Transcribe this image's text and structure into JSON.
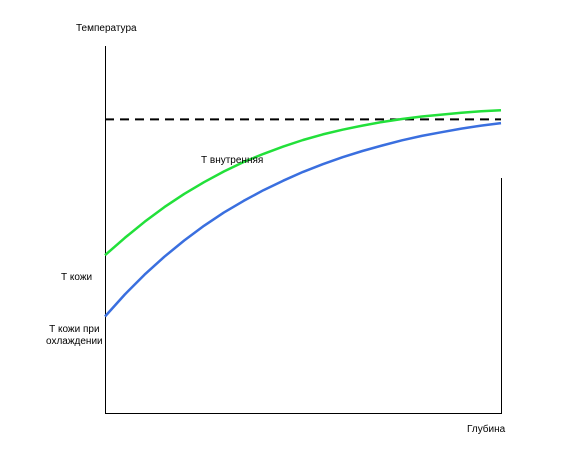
{
  "chart_data": {
    "type": "line",
    "xlabel": "Глубина",
    "ylabel": "Температура",
    "reference_line": {
      "label": "Т внутренняя",
      "value": 0.8,
      "style": "dashed",
      "color": "#000000"
    },
    "start_labels": {
      "skin": "Т кожи",
      "cooling_line1": "Т кожи при",
      "cooling_line2": "охлаждении"
    },
    "xlim": [
      0,
      1
    ],
    "ylim": [
      0,
      1
    ],
    "grid": false,
    "legend": "none",
    "series": [
      {
        "color": "#22e03a",
        "x": [
          0,
          0.05,
          0.1,
          0.15,
          0.2,
          0.25,
          0.3,
          0.35,
          0.4,
          0.45,
          0.5,
          0.55,
          0.6,
          0.65,
          0.7,
          0.75,
          0.8,
          0.85,
          0.9,
          0.95,
          1
        ],
        "values": [
          0.43,
          0.477,
          0.521,
          0.561,
          0.597,
          0.629,
          0.658,
          0.684,
          0.706,
          0.726,
          0.744,
          0.759,
          0.772,
          0.783,
          0.793,
          0.801,
          0.808,
          0.813,
          0.818,
          0.822,
          0.825
        ]
      },
      {
        "color": "#3a6fdf",
        "x": [
          0,
          0.05,
          0.1,
          0.15,
          0.2,
          0.25,
          0.3,
          0.35,
          0.4,
          0.45,
          0.5,
          0.55,
          0.6,
          0.65,
          0.7,
          0.75,
          0.8,
          0.85,
          0.9,
          0.95,
          1
        ],
        "values": [
          0.263,
          0.323,
          0.377,
          0.426,
          0.47,
          0.51,
          0.546,
          0.578,
          0.607,
          0.633,
          0.657,
          0.678,
          0.697,
          0.714,
          0.729,
          0.743,
          0.755,
          0.765,
          0.775,
          0.783,
          0.79
        ]
      }
    ]
  }
}
